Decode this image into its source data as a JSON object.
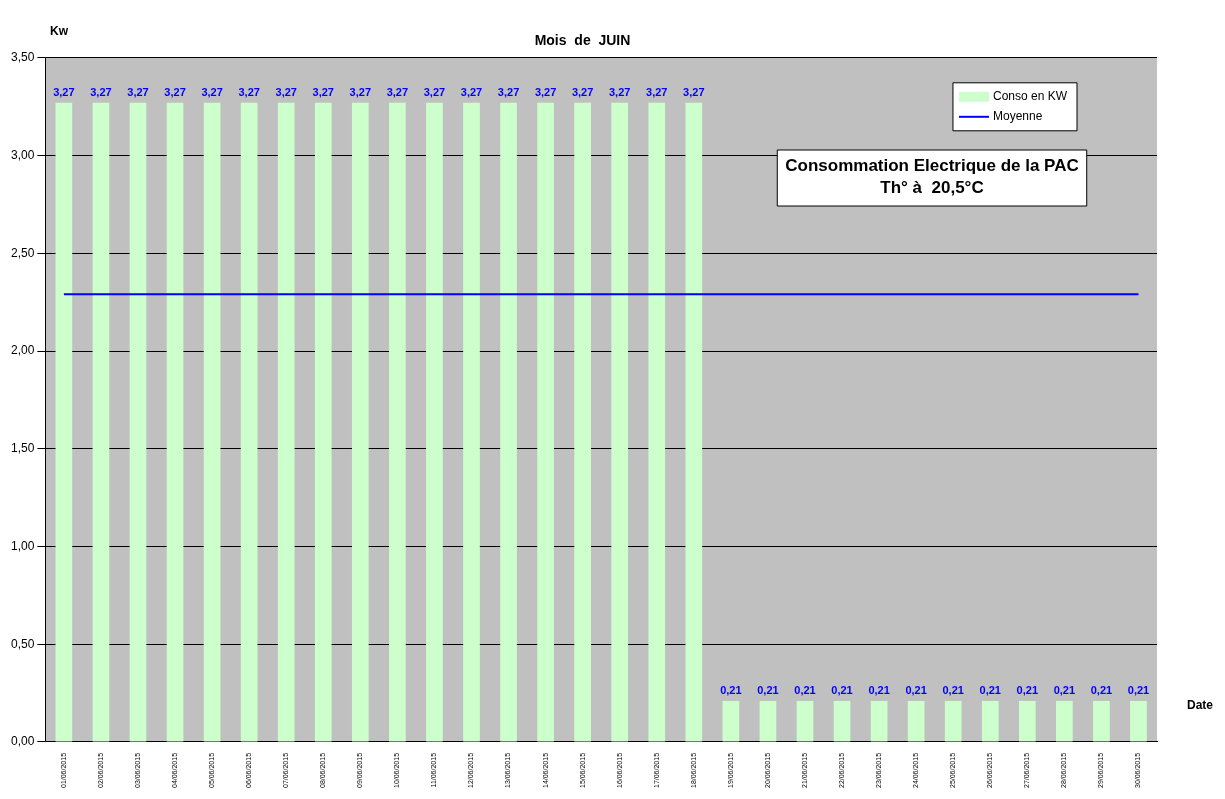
{
  "chart_data": {
    "type": "bar",
    "title": "Mois  de  JUIN",
    "xlabel": "Date",
    "ylabel": "Kw",
    "categories": [
      "01/06/2015",
      "02/06/2015",
      "03/06/2015",
      "04/06/2015",
      "05/06/2015",
      "06/06/2015",
      "07/06/2015",
      "08/06/2015",
      "09/06/2015",
      "10/06/2015",
      "11/06/2015",
      "12/06/2015",
      "13/06/2015",
      "14/06/2015",
      "15/06/2015",
      "16/06/2015",
      "17/06/2015",
      "18/06/2015",
      "19/06/2015",
      "20/06/2015",
      "21/06/2015",
      "22/06/2015",
      "23/06/2015",
      "24/06/2015",
      "25/06/2015",
      "26/06/2015",
      "27/06/2015",
      "28/06/2015",
      "29/06/2015",
      "30/06/2015"
    ],
    "series": [
      {
        "name": "Conso en KW",
        "color": "#ccffcc",
        "values": [
          3.27,
          3.27,
          3.27,
          3.27,
          3.27,
          3.27,
          3.27,
          3.27,
          3.27,
          3.27,
          3.27,
          3.27,
          3.27,
          3.27,
          3.27,
          3.27,
          3.27,
          3.27,
          0.21,
          0.21,
          0.21,
          0.21,
          0.21,
          0.21,
          0.21,
          0.21,
          0.21,
          0.21,
          0.21,
          0.21
        ],
        "value_labels": [
          "3,27",
          "3,27",
          "3,27",
          "3,27",
          "3,27",
          "3,27",
          "3,27",
          "3,27",
          "3,27",
          "3,27",
          "3,27",
          "3,27",
          "3,27",
          "3,27",
          "3,27",
          "3,27",
          "3,27",
          "3,27",
          "0,21",
          "0,21",
          "0,21",
          "0,21",
          "0,21",
          "0,21",
          "0,21",
          "0,21",
          "0,21",
          "0,21",
          "0,21",
          "0,21"
        ]
      },
      {
        "name": "Moyenne",
        "type": "line",
        "color": "#0000ff",
        "values": [
          2.29,
          2.29,
          2.29,
          2.29,
          2.29,
          2.29,
          2.29,
          2.29,
          2.29,
          2.29,
          2.29,
          2.29,
          2.29,
          2.29,
          2.29,
          2.29,
          2.29,
          2.29,
          2.29,
          2.29,
          2.29,
          2.29,
          2.29,
          2.29,
          2.29,
          2.29,
          2.29,
          2.29,
          2.29,
          2.29
        ]
      }
    ],
    "ylim": [
      0,
      3.5
    ],
    "yticks": [
      {
        "value": 0,
        "label": "0,00"
      },
      {
        "value": 0.5,
        "label": "0,50"
      },
      {
        "value": 1,
        "label": "1,00"
      },
      {
        "value": 1.5,
        "label": "1,50"
      },
      {
        "value": 2,
        "label": "2,00"
      },
      {
        "value": 2.5,
        "label": "2,50"
      },
      {
        "value": 3,
        "label": "3,00"
      },
      {
        "value": 3.5,
        "label": "3,50"
      }
    ],
    "grid": "y",
    "legend": "top right",
    "marker": "none",
    "line_style": "solid",
    "annotations": [
      "Consommation Electrique de la PAC\nTh° à  20,5°C"
    ]
  }
}
